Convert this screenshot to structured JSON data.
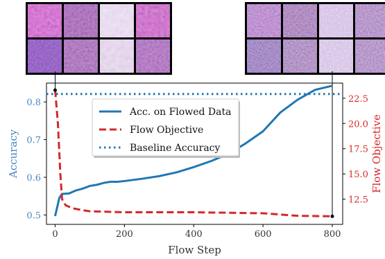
{
  "chart_data": {
    "type": "line",
    "xlabel": "Flow Step",
    "ylabel_left": "Accuracy",
    "ylabel_right": "Flow Objective",
    "xlim": [
      -25,
      830
    ],
    "ylim_left": [
      0.475,
      0.85
    ],
    "ylim_right": [
      10.0,
      24.0
    ],
    "x_ticks": [
      0,
      200,
      400,
      600,
      800
    ],
    "y_ticks_left": [
      0.5,
      0.6,
      0.7,
      0.8
    ],
    "y_ticks_right": [
      12.5,
      15.0,
      17.5,
      20.0,
      22.5
    ],
    "x_tick_labels": [
      "0",
      "200",
      "400",
      "600",
      "800"
    ],
    "y_tick_labels_left": [
      "0.5",
      "0.6",
      "0.7",
      "0.8"
    ],
    "y_tick_labels_right": [
      "12.5",
      "15.0",
      "17.5",
      "20.0",
      "22.5"
    ],
    "left_axis_color": "#4a86c0",
    "right_axis_color": "#d62728",
    "grid": false,
    "legend_position": "upper-center",
    "series": [
      {
        "name": "Acc. on Flowed Data",
        "axis": "left",
        "style": "solid",
        "color": "#1f77b4",
        "x": [
          0,
          12,
          20,
          40,
          60,
          80,
          100,
          120,
          140,
          160,
          180,
          200,
          250,
          300,
          350,
          400,
          450,
          500,
          550,
          600,
          650,
          700,
          750,
          800
        ],
        "y": [
          0.497,
          0.545,
          0.556,
          0.557,
          0.565,
          0.57,
          0.577,
          0.58,
          0.585,
          0.588,
          0.588,
          0.59,
          0.596,
          0.603,
          0.613,
          0.627,
          0.643,
          0.662,
          0.69,
          0.722,
          0.772,
          0.806,
          0.832,
          0.843
        ]
      },
      {
        "name": "Flow Objective",
        "axis": "right",
        "style": "dashed",
        "color": "#d62728",
        "x": [
          0,
          8,
          15,
          20,
          30,
          50,
          80,
          100,
          150,
          200,
          300,
          400,
          500,
          600,
          700,
          800
        ],
        "y": [
          23.3,
          20.0,
          15.0,
          12.5,
          11.9,
          11.6,
          11.4,
          11.3,
          11.25,
          11.2,
          11.2,
          11.2,
          11.15,
          11.1,
          10.85,
          10.8
        ]
      },
      {
        "name": "Baseline Accuracy",
        "axis": "left",
        "style": "dotted",
        "color": "#1f77b4",
        "constant": 0.821
      }
    ],
    "markers": [
      {
        "x": 0,
        "axis": "right",
        "y": 23.3
      },
      {
        "x": 800,
        "axis": "right",
        "y": 10.8
      }
    ]
  },
  "thumbnails": {
    "left_panel": [
      "histology-patch-1",
      "histology-patch-2",
      "histology-patch-3",
      "histology-patch-4",
      "histology-patch-5",
      "histology-patch-6",
      "histology-patch-7",
      "histology-patch-8"
    ],
    "right_panel": [
      "flowed-patch-1",
      "flowed-patch-2",
      "flowed-patch-3",
      "flowed-patch-4",
      "flowed-patch-5",
      "flowed-patch-6",
      "flowed-patch-7",
      "flowed-patch-8"
    ]
  }
}
